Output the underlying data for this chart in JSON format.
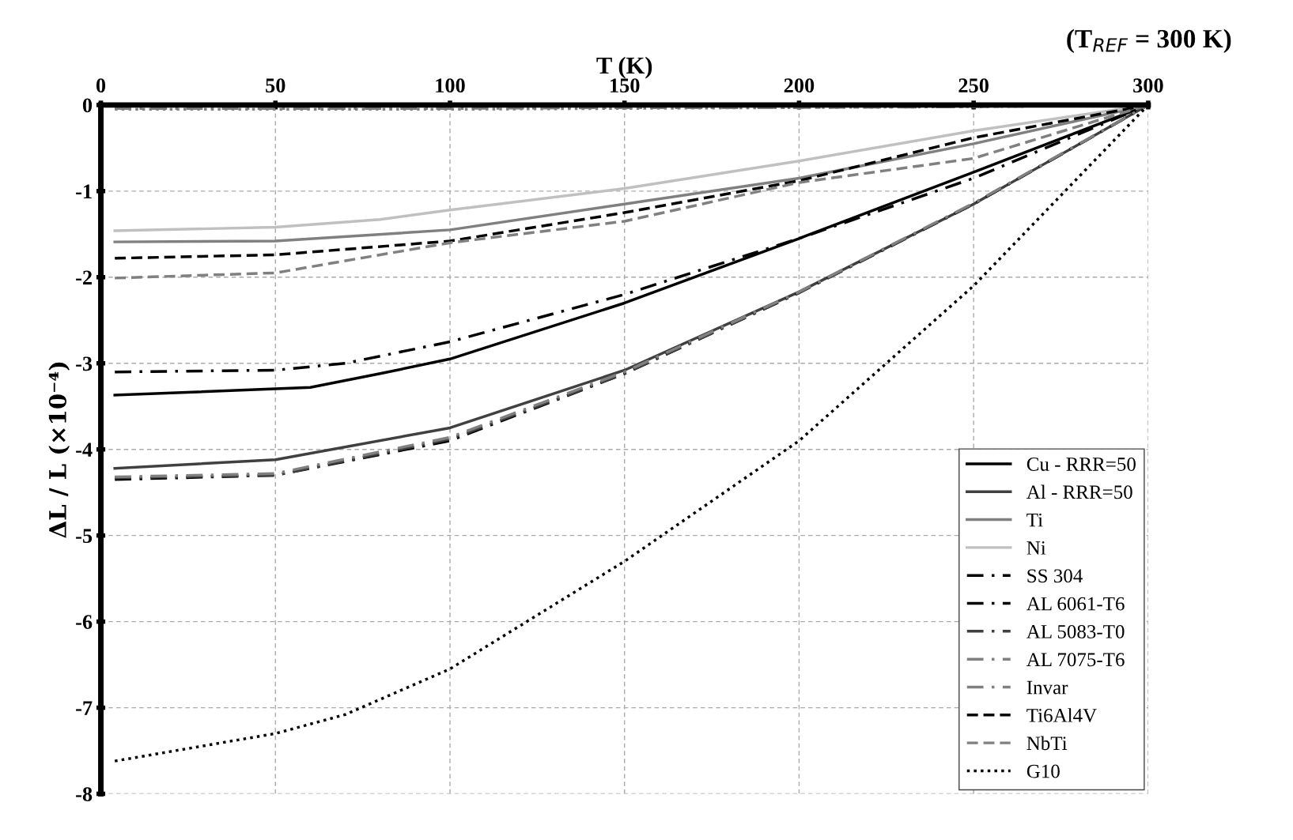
{
  "chart_data": {
    "type": "line",
    "xlabel": "T (K)",
    "ylabel": "ΔL / L (×10⁻⁴)",
    "annotations": [
      "(T$_{REF}$ = 300 K)"
    ],
    "x": [
      4,
      50,
      100,
      150,
      200,
      250,
      300
    ],
    "xlim": [
      0,
      300
    ],
    "xticks": [
      0,
      50,
      100,
      150,
      200,
      250,
      300
    ],
    "ylim": [
      -8,
      0
    ],
    "yticks": [
      -8,
      -7,
      -6,
      -5,
      -4,
      -3,
      -2,
      -1,
      0
    ],
    "grid": true,
    "legend": "bottom right",
    "marker": "none",
    "series": [
      {
        "name": "Cu - RRR=50",
        "color": "#000000",
        "line_style": "solid",
        "x": [
          4,
          60,
          80,
          100,
          150,
          200,
          250,
          300
        ],
        "values": [
          -3.37,
          -3.28,
          -3.12,
          -2.95,
          -2.3,
          -1.55,
          -0.78,
          0
        ]
      },
      {
        "name": "Al - RRR=50",
        "color": "#404040",
        "line_style": "solid",
        "values": [
          -4.22,
          -4.12,
          -3.75,
          -3.08,
          -2.17,
          -1.15,
          0
        ]
      },
      {
        "name": "Ti",
        "color": "#808080",
        "line_style": "solid",
        "values": [
          -1.59,
          -1.58,
          -1.45,
          -1.15,
          -0.85,
          -0.45,
          0
        ]
      },
      {
        "name": "Ni",
        "color": "#c0c0c0",
        "line_style": "solid",
        "x": [
          4,
          50,
          80,
          100,
          150,
          200,
          250,
          300
        ],
        "values": [
          -1.46,
          -1.42,
          -1.33,
          -1.22,
          -0.97,
          -0.65,
          -0.3,
          0
        ]
      },
      {
        "name": "SS 304",
        "color": "#000000",
        "line_style": "dashdot",
        "x": [
          4,
          50,
          70,
          100,
          150,
          200,
          250,
          300
        ],
        "values": [
          -3.1,
          -3.08,
          -3.0,
          -2.75,
          -2.2,
          -1.55,
          -0.85,
          0
        ]
      },
      {
        "name": "AL 6061-T6",
        "color": "#000000",
        "line_style": "dashdot",
        "values": [
          -4.35,
          -4.3,
          -3.9,
          -3.12,
          -2.18,
          -1.15,
          0
        ]
      },
      {
        "name": "AL 5083-T0",
        "color": "#404040",
        "line_style": "dashdot",
        "values": [
          -4.33,
          -4.3,
          -3.88,
          -3.12,
          -2.18,
          -1.15,
          0
        ]
      },
      {
        "name": "AL 7075-T6",
        "color": "#808080",
        "line_style": "dashdot",
        "values": [
          -4.32,
          -4.28,
          -3.86,
          -3.1,
          -2.17,
          -1.14,
          0
        ]
      },
      {
        "name": "Invar",
        "color": "#808080",
        "line_style": "dashdot",
        "values": [
          -0.04,
          -0.04,
          -0.04,
          -0.03,
          -0.03,
          -0.02,
          0
        ]
      },
      {
        "name": "Ti6Al4V",
        "color": "#000000",
        "line_style": "dashed",
        "values": [
          -1.78,
          -1.74,
          -1.58,
          -1.25,
          -0.88,
          -0.38,
          0
        ]
      },
      {
        "name": "NbTi",
        "color": "#808080",
        "line_style": "dashed",
        "values": [
          -2.01,
          -1.95,
          -1.6,
          -1.35,
          -0.9,
          -0.62,
          0
        ]
      },
      {
        "name": "G10",
        "color": "#000000",
        "line_style": "dotted",
        "x": [
          4,
          50,
          70,
          100,
          150,
          200,
          250,
          300
        ],
        "values": [
          -7.62,
          -7.3,
          -7.08,
          -6.55,
          -5.3,
          -3.9,
          -2.1,
          0
        ]
      },
      {
        "color": "#808080",
        "line_style": "dotted",
        "values": [
          -0.05,
          -0.05,
          -0.05,
          -0.04,
          -0.03,
          -0.02,
          0
        ]
      }
    ]
  }
}
